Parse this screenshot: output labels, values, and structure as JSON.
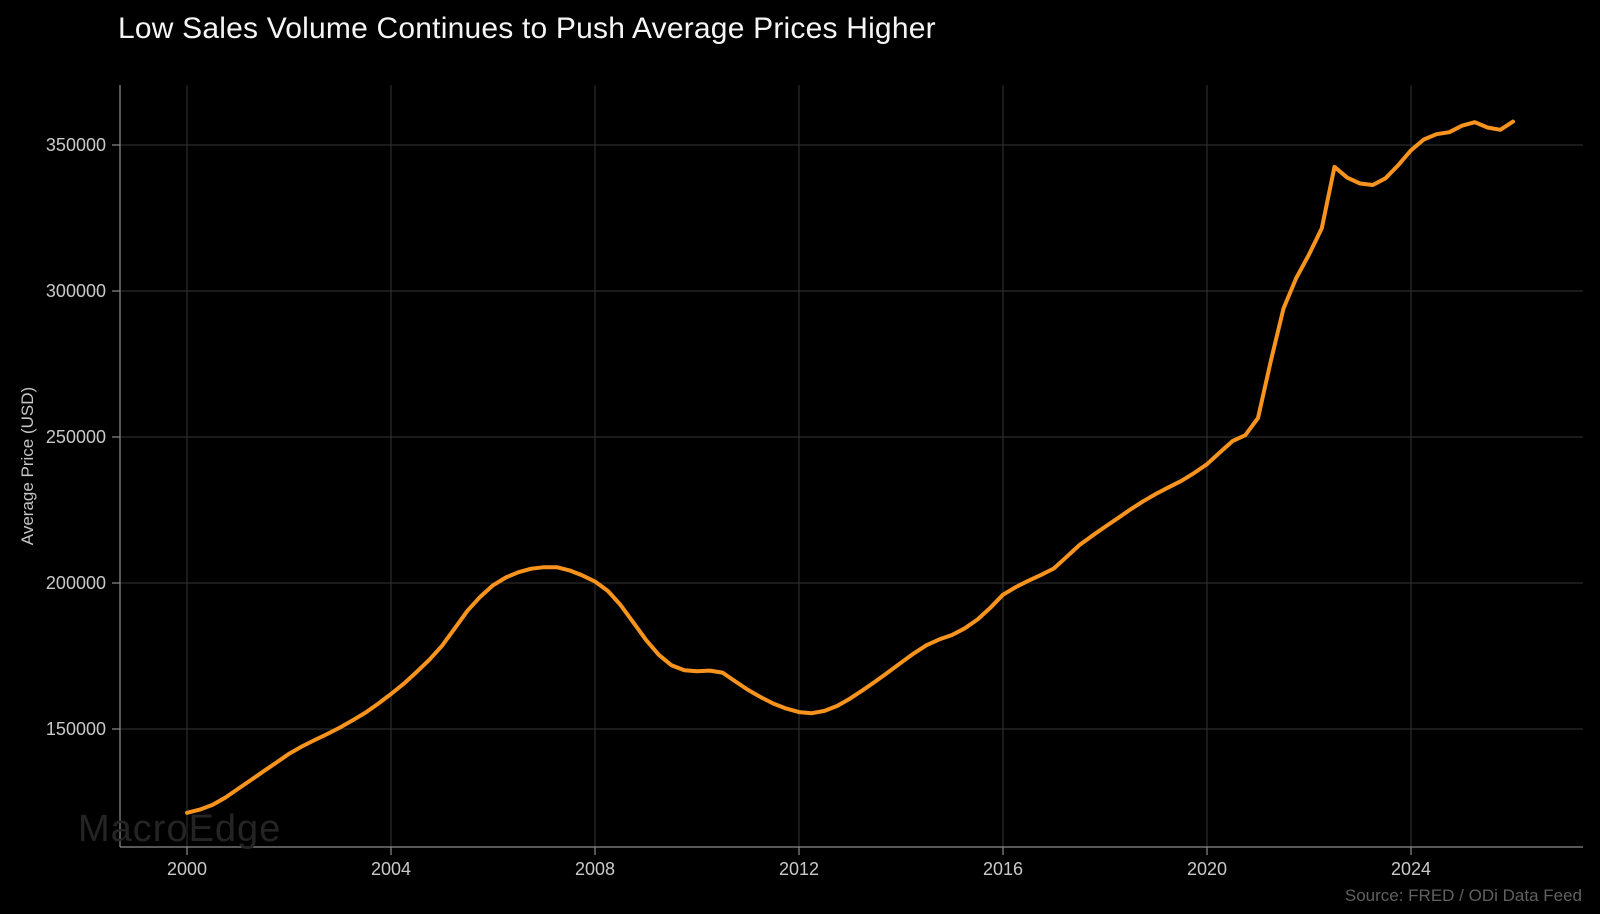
{
  "watermark": "MacroEdge",
  "source": "Source: FRED / ODi Data Feed",
  "chart_data": {
    "type": "line",
    "title": "Low Sales Volume Continues to Push Average Prices Higher",
    "xlabel": "",
    "ylabel": "Average Price (USD)",
    "x_ticks": [
      2000,
      2004,
      2008,
      2012,
      2016,
      2020,
      2024
    ],
    "y_ticks": [
      150000,
      200000,
      250000,
      300000,
      350000
    ],
    "xlim": [
      1998.7,
      2027.4
    ],
    "ylim": [
      109300,
      370200
    ],
    "grid": true,
    "legend": "none",
    "background": "#000000",
    "line_color": "#f8941d",
    "grid_color": "#343434",
    "axis_color": "#8c8c8c",
    "tick_label_color": "#c9c9c9",
    "series": [
      {
        "x_start": 2000.0,
        "x_step": 0.25,
        "values": [
          121300,
          122400,
          124000,
          126500,
          129500,
          132500,
          135500,
          138500,
          141500,
          144000,
          146200,
          148300,
          150500,
          153000,
          155600,
          158700,
          162000,
          165500,
          169500,
          173700,
          178500,
          184500,
          190500,
          195300,
          199200,
          201900,
          203700,
          204900,
          205400,
          205400,
          204300,
          202600,
          200500,
          197300,
          192500,
          186500,
          180500,
          175400,
          171800,
          170100,
          169800,
          170000,
          169300,
          166300,
          163400,
          160900,
          158700,
          157000,
          155800,
          155400,
          156200,
          157900,
          160400,
          163300,
          166300,
          169500,
          172700,
          175900,
          178700,
          180700,
          182200,
          184500,
          187500,
          191500,
          196000,
          198600,
          200800,
          202800,
          205000,
          209000,
          213000,
          216200,
          219200,
          222200,
          225200,
          228000,
          230500,
          232800,
          235000,
          237700,
          240700,
          244700,
          248600,
          250600,
          256500,
          276000,
          294000,
          304500,
          312500,
          321500,
          342500,
          338800,
          336800,
          336300,
          338600,
          343100,
          348200,
          351900,
          353700,
          354400,
          356600,
          357800,
          356000,
          355200,
          358000
        ]
      }
    ]
  }
}
